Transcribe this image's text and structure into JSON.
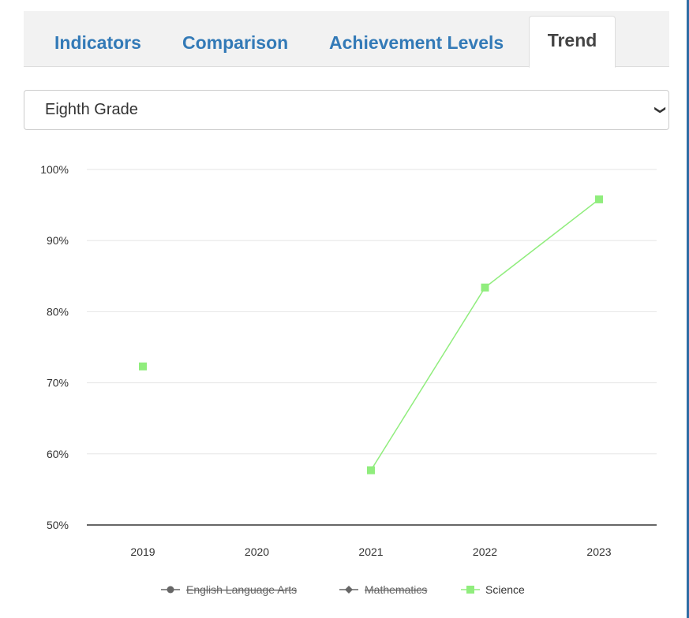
{
  "tabs": [
    {
      "label": "Indicators",
      "active": false
    },
    {
      "label": "Comparison",
      "active": false
    },
    {
      "label": "Achievement Levels",
      "active": false
    },
    {
      "label": "Trend",
      "active": true
    }
  ],
  "grade_select": {
    "value": "Eighth Grade"
  },
  "colors": {
    "tab_link": "#337ab7",
    "tab_active": "#444444",
    "science": "#90ed7d",
    "hidden_series": "#666666",
    "axis_line": "#333333",
    "gridline": "#e6e6e6"
  },
  "chart_data": {
    "type": "line",
    "x": [
      "2019",
      "2020",
      "2021",
      "2022",
      "2023"
    ],
    "ylim": [
      50,
      100
    ],
    "yticks": [
      "50%",
      "60%",
      "70%",
      "80%",
      "90%",
      "100%"
    ],
    "ytick_values": [
      50,
      60,
      70,
      80,
      90,
      100
    ],
    "grid": true,
    "legend_position": "bottom-center",
    "series": [
      {
        "name": "English Language Arts",
        "values": [
          null,
          null,
          null,
          null,
          null
        ],
        "visible": false,
        "marker": "circle"
      },
      {
        "name": "Mathematics",
        "values": [
          null,
          null,
          null,
          null,
          null
        ],
        "visible": false,
        "marker": "diamond"
      },
      {
        "name": "Science",
        "values": [
          72.3,
          null,
          57.7,
          83.4,
          95.8
        ],
        "visible": true,
        "marker": "square"
      }
    ]
  }
}
